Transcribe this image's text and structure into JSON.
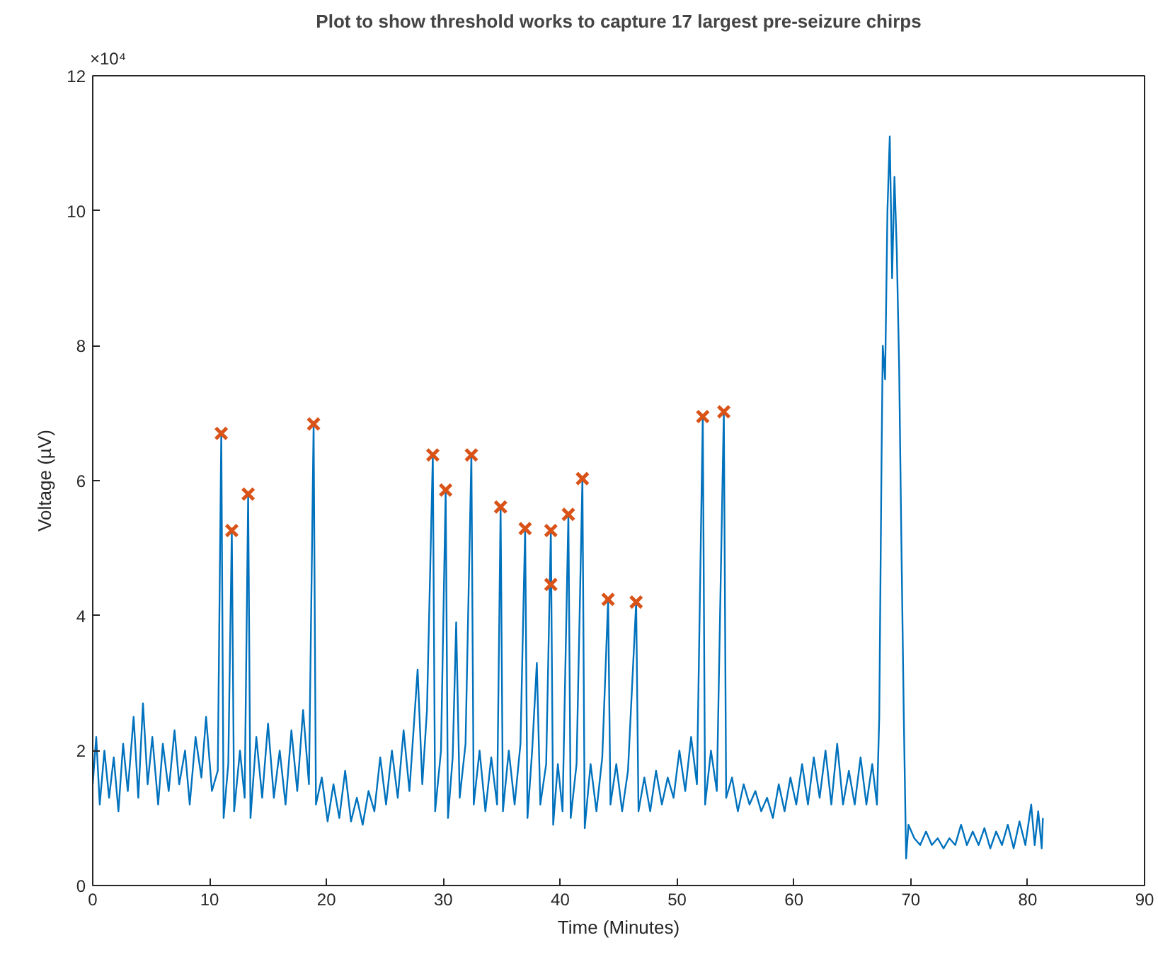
{
  "chart_data": {
    "type": "line",
    "title": "Plot to show threshold works to capture 17 largest pre-seizure chirps",
    "xlabel": "Time (Minutes)",
    "ylabel": "Voltage (µV)",
    "annotations": [
      "×10⁴"
    ],
    "xlim": [
      0,
      90
    ],
    "xticks": [
      0,
      10,
      20,
      30,
      40,
      50,
      60,
      70,
      80,
      90
    ],
    "ylim": [
      0,
      12
    ],
    "yticks": [
      0,
      2,
      4,
      6,
      8,
      10,
      12
    ],
    "grid": false,
    "series": [
      {
        "color": "#0072bd",
        "line_style": "solid",
        "x": [
          0,
          0.3,
          0.6,
          1.0,
          1.4,
          1.8,
          2.2,
          2.6,
          3.0,
          3.5,
          3.9,
          4.3,
          4.7,
          5.1,
          5.6,
          6.0,
          6.5,
          7.0,
          7.4,
          7.9,
          8.3,
          8.8,
          9.3,
          9.7,
          10.2,
          10.7,
          11.0,
          11.2,
          11.6,
          11.9,
          12.1,
          12.6,
          13.0,
          13.3,
          13.5,
          14.0,
          14.5,
          15.0,
          15.5,
          16.0,
          16.5,
          17.0,
          17.5,
          18.0,
          18.5,
          18.9,
          19.1,
          19.6,
          20.1,
          20.6,
          21.1,
          21.6,
          22.1,
          22.6,
          23.1,
          23.6,
          24.1,
          24.6,
          25.1,
          25.6,
          26.1,
          26.6,
          27.1,
          27.8,
          28.2,
          28.6,
          29.1,
          29.3,
          29.8,
          30.2,
          30.4,
          30.8,
          31.1,
          31.4,
          31.9,
          32.4,
          32.6,
          33.1,
          33.6,
          34.1,
          34.6,
          34.9,
          35.1,
          35.6,
          36.1,
          36.6,
          37.0,
          37.2,
          37.6,
          38.0,
          38.3,
          38.8,
          39.2,
          39.4,
          39.8,
          40.2,
          40.7,
          40.9,
          41.4,
          41.9,
          42.1,
          42.6,
          43.1,
          43.6,
          44.1,
          44.3,
          44.8,
          45.3,
          45.8,
          46.5,
          46.7,
          47.2,
          47.7,
          48.2,
          48.7,
          49.2,
          49.7,
          50.2,
          50.7,
          51.2,
          51.7,
          52.2,
          52.4,
          52.9,
          53.4,
          54.0,
          54.2,
          54.7,
          55.2,
          55.7,
          56.2,
          56.7,
          57.2,
          57.7,
          58.2,
          58.7,
          59.2,
          59.7,
          60.2,
          60.7,
          61.2,
          61.7,
          62.2,
          62.7,
          63.2,
          63.7,
          64.2,
          64.7,
          65.2,
          65.7,
          66.2,
          66.7,
          67.1,
          67.3,
          67.5,
          67.6,
          67.8,
          68.0,
          68.2,
          68.4,
          68.6,
          68.8,
          69.0,
          69.2,
          69.4,
          69.6,
          69.8,
          70.3,
          70.8,
          71.3,
          71.8,
          72.3,
          72.8,
          73.3,
          73.8,
          74.3,
          74.8,
          75.3,
          75.8,
          76.3,
          76.8,
          77.3,
          77.8,
          78.3,
          78.8,
          79.3,
          79.8,
          80.3,
          80.6,
          80.9,
          81.2,
          81.3
        ],
        "values": [
          1.5,
          2.2,
          1.2,
          2.0,
          1.3,
          1.9,
          1.1,
          2.1,
          1.4,
          2.5,
          1.3,
          2.7,
          1.5,
          2.2,
          1.2,
          2.1,
          1.4,
          2.3,
          1.5,
          2.0,
          1.2,
          2.2,
          1.6,
          2.5,
          1.4,
          1.7,
          6.7,
          1.0,
          1.8,
          5.26,
          1.1,
          2.0,
          1.3,
          5.8,
          1.0,
          2.2,
          1.3,
          2.4,
          1.3,
          2.0,
          1.2,
          2.3,
          1.4,
          2.6,
          1.5,
          6.84,
          1.2,
          1.6,
          0.95,
          1.5,
          1.0,
          1.7,
          0.95,
          1.3,
          0.9,
          1.4,
          1.1,
          1.9,
          1.2,
          2.0,
          1.3,
          2.3,
          1.4,
          3.2,
          1.5,
          2.6,
          6.38,
          1.1,
          2.0,
          5.86,
          1.0,
          1.9,
          3.9,
          1.3,
          2.1,
          6.38,
          1.2,
          2.0,
          1.1,
          1.9,
          1.2,
          5.61,
          1.1,
          2.0,
          1.2,
          2.1,
          5.29,
          1.0,
          2.0,
          3.3,
          1.2,
          1.8,
          5.26,
          0.9,
          1.8,
          1.1,
          5.5,
          1.0,
          1.8,
          6.03,
          0.85,
          1.8,
          1.1,
          1.9,
          4.24,
          1.2,
          1.8,
          1.1,
          1.7,
          4.2,
          1.1,
          1.6,
          1.1,
          1.7,
          1.2,
          1.6,
          1.3,
          2.0,
          1.4,
          2.2,
          1.5,
          6.95,
          1.2,
          2.0,
          1.4,
          7.02,
          1.3,
          1.6,
          1.1,
          1.5,
          1.2,
          1.4,
          1.1,
          1.3,
          1.0,
          1.5,
          1.1,
          1.6,
          1.2,
          1.8,
          1.2,
          1.9,
          1.3,
          2.0,
          1.2,
          2.1,
          1.2,
          1.7,
          1.2,
          1.9,
          1.2,
          1.8,
          1.2,
          2.5,
          6.4,
          8.0,
          7.5,
          10.0,
          11.1,
          9.0,
          10.5,
          9.4,
          7.7,
          5.0,
          2.5,
          0.4,
          0.9,
          0.7,
          0.6,
          0.8,
          0.6,
          0.7,
          0.55,
          0.7,
          0.6,
          0.9,
          0.6,
          0.8,
          0.6,
          0.85,
          0.55,
          0.8,
          0.6,
          0.9,
          0.55,
          0.95,
          0.6,
          1.2,
          0.6,
          1.1,
          0.55,
          1.0
        ]
      },
      {
        "type": "scatter",
        "color": "#d95319",
        "marker": "cross",
        "x": [
          11.0,
          11.9,
          13.3,
          18.9,
          29.1,
          30.2,
          32.4,
          34.9,
          37.0,
          39.2,
          39.2,
          40.7,
          41.9,
          44.1,
          46.5,
          52.2,
          54.0
        ],
        "values": [
          6.7,
          5.26,
          5.8,
          6.84,
          6.38,
          5.86,
          6.38,
          5.61,
          5.29,
          5.26,
          4.46,
          5.5,
          6.03,
          4.24,
          4.2,
          6.95,
          7.02
        ]
      }
    ]
  }
}
